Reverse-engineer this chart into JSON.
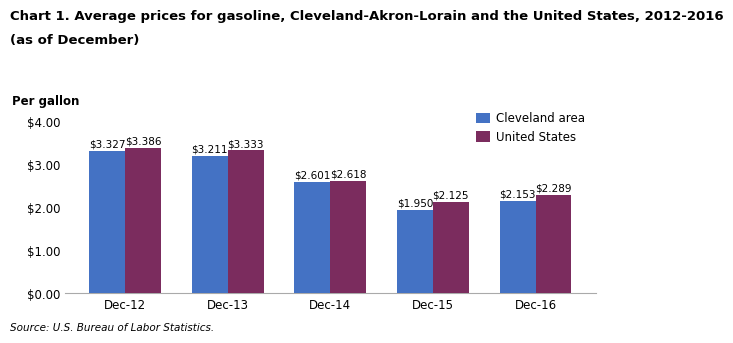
{
  "title_line1": "Chart 1. Average prices for gasoline, Cleveland-Akron-Lorain and the United States, 2012-2016",
  "title_line2": "(as of December)",
  "ylabel": "Per gallon",
  "source": "Source: U.S. Bureau of Labor Statistics.",
  "categories": [
    "Dec-12",
    "Dec-13",
    "Dec-14",
    "Dec-15",
    "Dec-16"
  ],
  "cleveland_values": [
    3.327,
    3.211,
    2.601,
    1.95,
    2.153
  ],
  "us_values": [
    3.386,
    3.333,
    2.618,
    2.125,
    2.289
  ],
  "cleveland_labels": [
    "$3.327",
    "$3.211",
    "$2.601",
    "$1.950",
    "$2.153"
  ],
  "us_labels": [
    "$3.386",
    "$3.333",
    "$2.618",
    "$2.125",
    "$2.289"
  ],
  "cleveland_color": "#4472C4",
  "us_color": "#7B2C5E",
  "ylim": [
    0,
    4.0
  ],
  "yticks": [
    0.0,
    1.0,
    2.0,
    3.0,
    4.0
  ],
  "legend_labels": [
    "Cleveland area",
    "United States"
  ],
  "bar_width": 0.35,
  "title_fontsize": 9.5,
  "axis_label_fontsize": 8.5,
  "bar_label_fontsize": 7.5,
  "tick_fontsize": 8.5,
  "source_fontsize": 7.5,
  "legend_fontsize": 8.5
}
